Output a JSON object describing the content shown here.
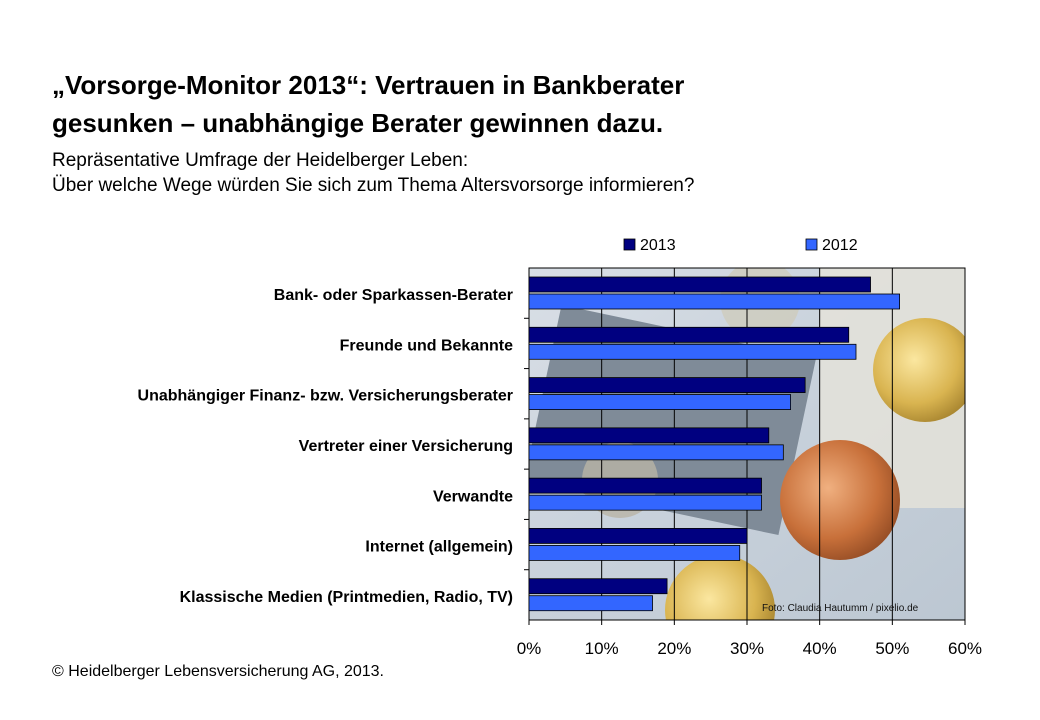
{
  "title": {
    "line1": "„Vorsorge-Monitor 2013“: Vertrauen in Bankberater",
    "line2": "gesunken – unabhängige Berater gewinnen dazu."
  },
  "subtitle": {
    "line1": "Repräsentative Umfrage der Heidelberger Leben:",
    "line2": "Über welche Wege würden Sie sich zum Thema Altersvorsorge informieren?"
  },
  "footer": "© Heidelberger Lebensversicherung AG, 2013.",
  "photo_credit": "Foto: Claudia Hautumm / pixelio.de",
  "colors": {
    "series_2013": "#000080",
    "series_2012": "#3366FF"
  },
  "chart_data": {
    "type": "bar",
    "orientation": "horizontal",
    "categories": [
      "Bank- oder Sparkassen-Berater",
      "Freunde und Bekannte",
      "Unabhängiger Finanz- bzw. Versicherungsberater",
      "Vertreter einer Versicherung",
      "Verwandte",
      "Internet (allgemein)",
      "Klassische Medien (Printmedien, Radio, TV)"
    ],
    "series": [
      {
        "name": "2013",
        "values": [
          47,
          44,
          38,
          33,
          32,
          30,
          19
        ]
      },
      {
        "name": "2012",
        "values": [
          51,
          45,
          36,
          35,
          32,
          29,
          17
        ]
      }
    ],
    "xlim": [
      0,
      60
    ],
    "xticks": [
      "0%",
      "10%",
      "20%",
      "30%",
      "40%",
      "50%",
      "60%"
    ],
    "unit": "%",
    "grid": true,
    "legend_position": "top"
  }
}
